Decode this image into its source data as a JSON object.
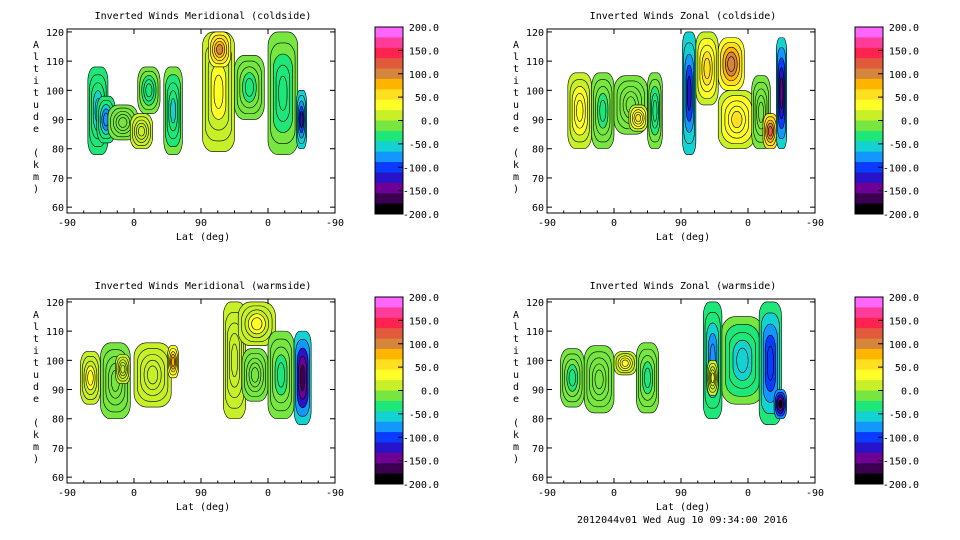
{
  "colorbar": {
    "ticks": [
      "200.0",
      "150.0",
      "100.0",
      "50.0",
      "0.0",
      "-50.0",
      "-100.0",
      "-150.0",
      "-200.0"
    ],
    "colors": [
      "#ff66ff",
      "#ff3c9c",
      "#ff2450",
      "#e15a3c",
      "#d6863a",
      "#ffb400",
      "#ffe020",
      "#ffff28",
      "#c8f028",
      "#78e640",
      "#1ee678",
      "#14d2d2",
      "#1496ff",
      "#0a3cff",
      "#2814c8",
      "#6e0096",
      "#3c0050",
      "#000000"
    ]
  },
  "chart_data": [
    {
      "type": "heatmap",
      "title": "Inverted Winds Meridional (coldside)",
      "xlabel": "Lat (deg)",
      "ylabel": "Altitude (km)",
      "x_tick_labels": [
        "-90",
        "0",
        "90",
        "0",
        "-90"
      ],
      "y_ticks": [
        60,
        70,
        80,
        90,
        100,
        110,
        120
      ],
      "ylim": [
        58,
        121
      ],
      "z_range": [
        -200,
        200
      ],
      "blobs": [
        {
          "x": [
            -62,
            -35
          ],
          "y": [
            78,
            108
          ],
          "v": -60
        },
        {
          "x": [
            -50,
            -25
          ],
          "y": [
            82,
            98
          ],
          "v": -80
        },
        {
          "x": [
            -35,
            5
          ],
          "y": [
            83,
            95
          ],
          "v": -20
        },
        {
          "x": [
            -5,
            25
          ],
          "y": [
            80,
            92
          ],
          "v": 20
        },
        {
          "x": [
            5,
            35
          ],
          "y": [
            92,
            108
          ],
          "v": -35
        },
        {
          "x": [
            40,
            65
          ],
          "y": [
            78,
            108
          ],
          "v": -50
        },
        {
          "x": [
            92,
            135
          ],
          "y": [
            79,
            120
          ],
          "v": 30
        },
        {
          "x": [
            100,
            130
          ],
          "y": [
            108,
            120
          ],
          "v": 90
        },
        {
          "x": [
            135,
            175
          ],
          "y": [
            90,
            112
          ],
          "v": -30
        },
        {
          "x": [
            180,
            220
          ],
          "y": [
            78,
            120
          ],
          "v": -40
        },
        {
          "x": [
            218,
            232
          ],
          "y": [
            80,
            100
          ],
          "v": -120
        }
      ]
    },
    {
      "type": "heatmap",
      "title": "Inverted Winds Zonal (coldside)",
      "xlabel": "Lat (deg)",
      "ylabel": "Altitude (km)",
      "x_tick_labels": [
        "-90",
        "0",
        "90",
        "0",
        "-90"
      ],
      "y_ticks": [
        60,
        70,
        80,
        90,
        100,
        110,
        120
      ],
      "ylim": [
        58,
        121
      ],
      "z_range": [
        -200,
        200
      ],
      "blobs": [
        {
          "x": [
            -62,
            -30
          ],
          "y": [
            80,
            106
          ],
          "v": 35
        },
        {
          "x": [
            -30,
            0
          ],
          "y": [
            80,
            106
          ],
          "v": -30
        },
        {
          "x": [
            0,
            45
          ],
          "y": [
            85,
            105
          ],
          "v": -10
        },
        {
          "x": [
            20,
            45
          ],
          "y": [
            86,
            95
          ],
          "v": 50
        },
        {
          "x": [
            45,
            65
          ],
          "y": [
            80,
            106
          ],
          "v": -40
        },
        {
          "x": [
            92,
            110
          ],
          "y": [
            78,
            120
          ],
          "v": -120
        },
        {
          "x": [
            110,
            140
          ],
          "y": [
            95,
            120
          ],
          "v": 55
        },
        {
          "x": [
            140,
            175
          ],
          "y": [
            100,
            118
          ],
          "v": 110
        },
        {
          "x": [
            140,
            190
          ],
          "y": [
            80,
            100
          ],
          "v": 45
        },
        {
          "x": [
            185,
            210
          ],
          "y": [
            80,
            105
          ],
          "v": 0
        },
        {
          "x": [
            200,
            220
          ],
          "y": [
            80,
            92
          ],
          "v": 120
        },
        {
          "x": [
            218,
            232
          ],
          "y": [
            80,
            118
          ],
          "v": -150
        }
      ]
    },
    {
      "type": "heatmap",
      "title": "Inverted Winds Meridional (warmside)",
      "xlabel": "Lat (deg)",
      "ylabel": "Altitude (km)",
      "x_tick_labels": [
        "-90",
        "0",
        "90",
        "0",
        "-90"
      ],
      "y_ticks": [
        60,
        70,
        80,
        90,
        100,
        110,
        120
      ],
      "ylim": [
        58,
        121
      ],
      "z_range": [
        -200,
        200
      ],
      "blobs": [
        {
          "x": [
            -72,
            -45
          ],
          "y": [
            85,
            103
          ],
          "v": 30
        },
        {
          "x": [
            -45,
            -5
          ],
          "y": [
            80,
            106
          ],
          "v": -15
        },
        {
          "x": [
            -25,
            -5
          ],
          "y": [
            92,
            102
          ],
          "v": 20
        },
        {
          "x": [
            0,
            50
          ],
          "y": [
            84,
            106
          ],
          "v": 5
        },
        {
          "x": [
            45,
            60
          ],
          "y": [
            94,
            105
          ],
          "v": 80
        },
        {
          "x": [
            120,
            150
          ],
          "y": [
            80,
            120
          ],
          "v": 20
        },
        {
          "x": [
            140,
            190
          ],
          "y": [
            105,
            120
          ],
          "v": 30
        },
        {
          "x": [
            145,
            180
          ],
          "y": [
            86,
            104
          ],
          "v": -15
        },
        {
          "x": [
            180,
            215
          ],
          "y": [
            80,
            110
          ],
          "v": -30
        },
        {
          "x": [
            215,
            238
          ],
          "y": [
            78,
            110
          ],
          "v": -160
        }
      ]
    },
    {
      "type": "heatmap",
      "title": "Inverted Winds Zonal (warmside)",
      "xlabel": "Lat (deg)",
      "ylabel": "Altitude (km)",
      "x_tick_labels": [
        "-90",
        "0",
        "90",
        "0",
        "-90"
      ],
      "y_ticks": [
        60,
        70,
        80,
        90,
        100,
        110,
        120
      ],
      "ylim": [
        58,
        121
      ],
      "z_range": [
        -200,
        200
      ],
      "blobs": [
        {
          "x": [
            -72,
            -40
          ],
          "y": [
            84,
            104
          ],
          "v": -30
        },
        {
          "x": [
            -40,
            0
          ],
          "y": [
            82,
            105
          ],
          "v": -10
        },
        {
          "x": [
            0,
            30
          ],
          "y": [
            95,
            103
          ],
          "v": 40
        },
        {
          "x": [
            30,
            60
          ],
          "y": [
            82,
            106
          ],
          "v": -30
        },
        {
          "x": [
            120,
            145
          ],
          "y": [
            80,
            120
          ],
          "v": -80
        },
        {
          "x": [
            125,
            140
          ],
          "y": [
            88,
            100
          ],
          "v": 25
        },
        {
          "x": [
            145,
            200
          ],
          "y": [
            85,
            115
          ],
          "v": -55
        },
        {
          "x": [
            195,
            225
          ],
          "y": [
            78,
            120
          ],
          "v": -110
        },
        {
          "x": [
            215,
            232
          ],
          "y": [
            80,
            90
          ],
          "v": -180
        }
      ]
    }
  ],
  "footer": "2012044v01 Wed Aug 10 09:34:00 2016"
}
